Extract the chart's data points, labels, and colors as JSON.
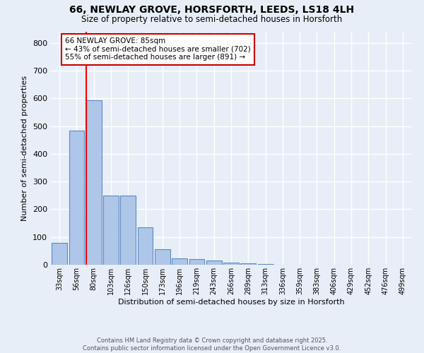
{
  "title_line1": "66, NEWLAY GROVE, HORSFORTH, LEEDS, LS18 4LH",
  "title_line2": "Size of property relative to semi-detached houses in Horsforth",
  "xlabel": "Distribution of semi-detached houses by size in Horsforth",
  "ylabel": "Number of semi-detached properties",
  "categories": [
    "33sqm",
    "56sqm",
    "80sqm",
    "103sqm",
    "126sqm",
    "150sqm",
    "173sqm",
    "196sqm",
    "219sqm",
    "243sqm",
    "266sqm",
    "289sqm",
    "313sqm",
    "336sqm",
    "359sqm",
    "383sqm",
    "406sqm",
    "429sqm",
    "452sqm",
    "476sqm",
    "499sqm"
  ],
  "values": [
    78,
    483,
    592,
    250,
    250,
    135,
    55,
    22,
    20,
    15,
    8,
    5,
    3,
    0,
    0,
    0,
    0,
    0,
    0,
    0,
    0
  ],
  "bar_color": "#aec6e8",
  "bar_edge_color": "#5a8ac6",
  "redline_bar_index": 2,
  "pct_smaller": 43,
  "n_smaller": 702,
  "pct_larger": 55,
  "n_larger": 891,
  "property_label": "66 NEWLAY GROVE: 85sqm",
  "annotation_box_color": "#ffffff",
  "annotation_box_edge": "#cc0000",
  "ylim": [
    0,
    840
  ],
  "yticks": [
    0,
    100,
    200,
    300,
    400,
    500,
    600,
    700,
    800
  ],
  "background_color": "#e8eef8",
  "grid_color": "#ffffff",
  "footer_line1": "Contains HM Land Registry data © Crown copyright and database right 2025.",
  "footer_line2": "Contains public sector information licensed under the Open Government Licence v3.0."
}
